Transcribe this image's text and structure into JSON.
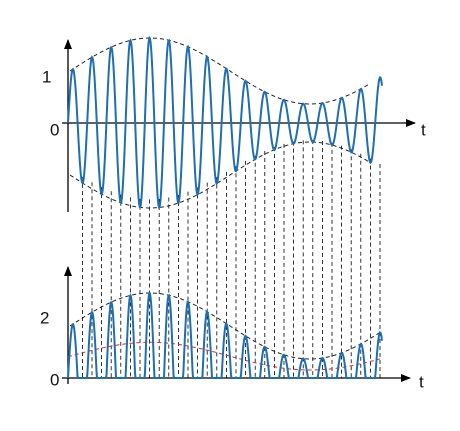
{
  "top_plot": {
    "y_labels": [
      "1",
      "0"
    ],
    "x_label": "t"
  },
  "bottom_plot": {
    "y_labels": [
      "2",
      "0"
    ],
    "x_label": "t"
  }
}
